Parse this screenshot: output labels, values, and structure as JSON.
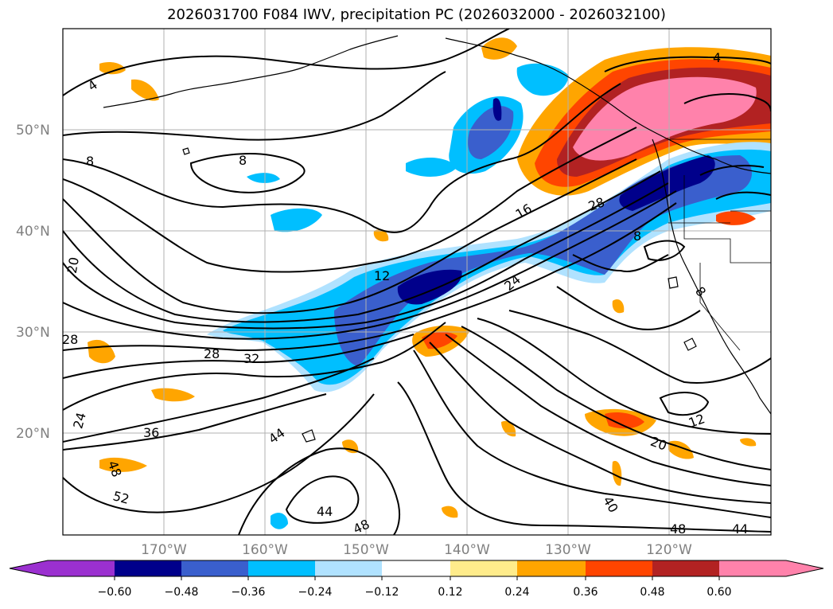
{
  "title": "2026031700 F084 IWV, precipitation PC (2026032000 - 2026032100)",
  "map": {
    "lat_labels": [
      "50°N",
      "40°N",
      "30°N",
      "20°N"
    ],
    "lon_labels": [
      "170°W",
      "160°W",
      "150°W",
      "140°W",
      "130°W",
      "120°W"
    ],
    "contour_labels": [
      "4",
      "8",
      "8",
      "12",
      "16",
      "20",
      "28",
      "28",
      "32",
      "24",
      "36",
      "44",
      "48",
      "52",
      "44",
      "48",
      "24",
      "28",
      "8",
      "12",
      "20",
      "40",
      "48",
      "44",
      "4",
      "8"
    ]
  },
  "colorbar": {
    "colors": [
      "#9b30d0",
      "#00008b",
      "#3a5fcd",
      "#00bfff",
      "#b0e2ff",
      "#ffffff",
      "#ffec8b",
      "#ffa500",
      "#ff4500",
      "#b22222",
      "#ff82ab"
    ],
    "tick_labels": [
      "−0.60",
      "−0.48",
      "−0.36",
      "−0.24",
      "−0.12",
      "0.12",
      "0.24",
      "0.36",
      "0.48",
      "0.60"
    ]
  }
}
